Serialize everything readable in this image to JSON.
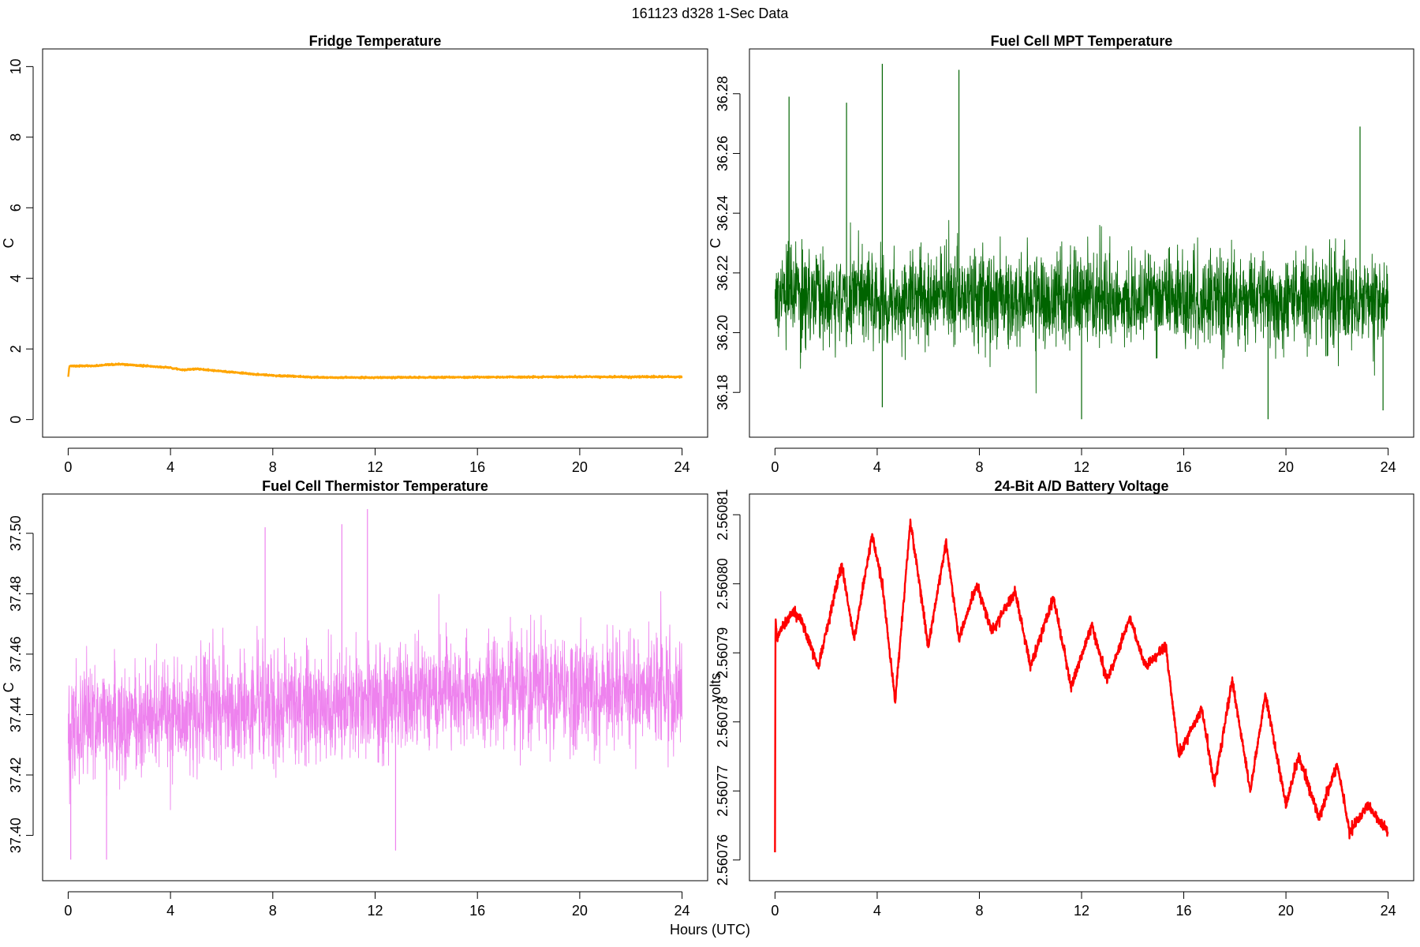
{
  "figure": {
    "title": "161123   d328   1-Sec Data",
    "xlabel": "Hours (UTC)"
  },
  "chart_data": [
    {
      "id": "fridge",
      "type": "line",
      "title": "Fridge Temperature",
      "xlabel": "",
      "ylabel": "C",
      "xlim": [
        -1,
        25
      ],
      "ylim": [
        -0.5,
        10.5
      ],
      "xticks": [
        0,
        4,
        8,
        12,
        16,
        20,
        24
      ],
      "yticks": [
        0,
        2,
        4,
        6,
        8,
        10
      ],
      "ytick_labels": [
        "0",
        "2",
        "4",
        "6",
        "8",
        "10"
      ],
      "color": "#FFA500",
      "noise": 0.02,
      "series": [
        {
          "name": "Fridge Temperature",
          "x": [
            0,
            0.05,
            0.3,
            1,
            2,
            3,
            4,
            4.5,
            5,
            6,
            7,
            8,
            9,
            10,
            12,
            16,
            20,
            24
          ],
          "y": [
            1.2,
            1.52,
            1.52,
            1.52,
            1.57,
            1.52,
            1.47,
            1.4,
            1.44,
            1.37,
            1.3,
            1.25,
            1.22,
            1.19,
            1.19,
            1.2,
            1.21,
            1.21
          ]
        }
      ]
    },
    {
      "id": "mpt",
      "type": "line",
      "title": "Fuel Cell MPT Temperature",
      "xlabel": "",
      "ylabel": "C",
      "xlim": [
        -1,
        25
      ],
      "ylim": [
        36.165,
        36.295
      ],
      "xticks": [
        0,
        4,
        8,
        12,
        16,
        20,
        24
      ],
      "yticks": [
        36.18,
        36.2,
        36.22,
        36.24,
        36.26,
        36.28
      ],
      "ytick_labels": [
        "36.18",
        "36.20",
        "36.22",
        "36.24",
        "36.26",
        "36.28"
      ],
      "color": "#006400",
      "noise": 0.014,
      "series": [
        {
          "name": "Fuel Cell MPT Temperature",
          "x": [
            0,
            4,
            8,
            12,
            16,
            20,
            24
          ],
          "y": [
            36.212,
            36.212,
            36.212,
            36.211,
            36.211,
            36.211,
            36.211
          ]
        }
      ],
      "spikes": [
        {
          "x": 4.2,
          "y": 36.29
        },
        {
          "x": 7.2,
          "y": 36.288
        },
        {
          "x": 0.55,
          "y": 36.279
        },
        {
          "x": 2.8,
          "y": 36.277
        },
        {
          "x": 22.9,
          "y": 36.269
        },
        {
          "x": 4.2,
          "y": 36.175
        },
        {
          "x": 12.0,
          "y": 36.171
        },
        {
          "x": 19.3,
          "y": 36.171
        },
        {
          "x": 23.8,
          "y": 36.174
        }
      ]
    },
    {
      "id": "thermistor",
      "type": "line",
      "title": "Fuel Cell Thermistor Temperature",
      "xlabel": "",
      "ylabel": "C",
      "xlim": [
        -1,
        25
      ],
      "ylim": [
        37.385,
        37.513
      ],
      "xticks": [
        0,
        4,
        8,
        12,
        16,
        20,
        24
      ],
      "yticks": [
        37.4,
        37.42,
        37.44,
        37.46,
        37.48,
        37.5
      ],
      "ytick_labels": [
        "37.40",
        "37.42",
        "37.44",
        "37.46",
        "37.48",
        "37.50"
      ],
      "color": "#EE82EE",
      "noise": 0.017,
      "series": [
        {
          "name": "Fuel Cell Thermistor Temperature",
          "x": [
            0,
            4,
            8,
            12,
            16,
            20,
            24
          ],
          "y": [
            37.437,
            37.44,
            37.442,
            37.445,
            37.448,
            37.448,
            37.448
          ]
        }
      ],
      "spikes": [
        {
          "x": 11.7,
          "y": 37.508
        },
        {
          "x": 7.7,
          "y": 37.502
        },
        {
          "x": 10.7,
          "y": 37.503
        },
        {
          "x": 0.1,
          "y": 37.392
        },
        {
          "x": 1.5,
          "y": 37.392
        },
        {
          "x": 12.8,
          "y": 37.395
        }
      ]
    },
    {
      "id": "battery",
      "type": "line",
      "title": "24-Bit A/D Battery Voltage",
      "xlabel": "",
      "ylabel": "volts",
      "xlim": [
        -1,
        25
      ],
      "ylim": [
        2.560757,
        2.560813
      ],
      "xticks": [
        0,
        4,
        8,
        12,
        16,
        20,
        24
      ],
      "yticks": [
        2.56076,
        2.56077,
        2.56078,
        2.56079,
        2.5608,
        2.56081
      ],
      "ytick_labels": [
        "2.56076",
        "2.56077",
        "2.56078",
        "2.56079",
        "2.56080",
        "2.56081"
      ],
      "color": "#FF0000",
      "noise": 7e-07,
      "series": [
        {
          "name": "24-Bit A/D Battery Voltage",
          "x": [
            0,
            0.02,
            0.08,
            0.3,
            0.7,
            1.0,
            1.7,
            2.6,
            3.1,
            3.8,
            4.2,
            4.7,
            5.3,
            6.0,
            6.7,
            7.2,
            7.9,
            8.5,
            9.4,
            10.0,
            10.9,
            11.6,
            12.4,
            13.0,
            13.9,
            14.5,
            15.3,
            15.8,
            16.7,
            17.2,
            17.9,
            18.6,
            19.2,
            20.0,
            20.5,
            21.3,
            22.0,
            22.5,
            23.2,
            23.8,
            24.0
          ],
          "y": [
            2.560761,
            2.560795,
            2.560792,
            2.560794,
            2.560796,
            2.560795,
            2.560788,
            2.560803,
            2.560792,
            2.560807,
            2.5608,
            2.560783,
            2.560809,
            2.560791,
            2.560806,
            2.560792,
            2.5608,
            2.560793,
            2.560799,
            2.560788,
            2.560798,
            2.560785,
            2.560794,
            2.560786,
            2.560795,
            2.560788,
            2.560791,
            2.560775,
            2.560782,
            2.560771,
            2.560786,
            2.56077,
            2.560784,
            2.560768,
            2.560775,
            2.560766,
            2.560774,
            2.560764,
            2.560768,
            2.560765,
            2.560764
          ]
        }
      ]
    }
  ]
}
